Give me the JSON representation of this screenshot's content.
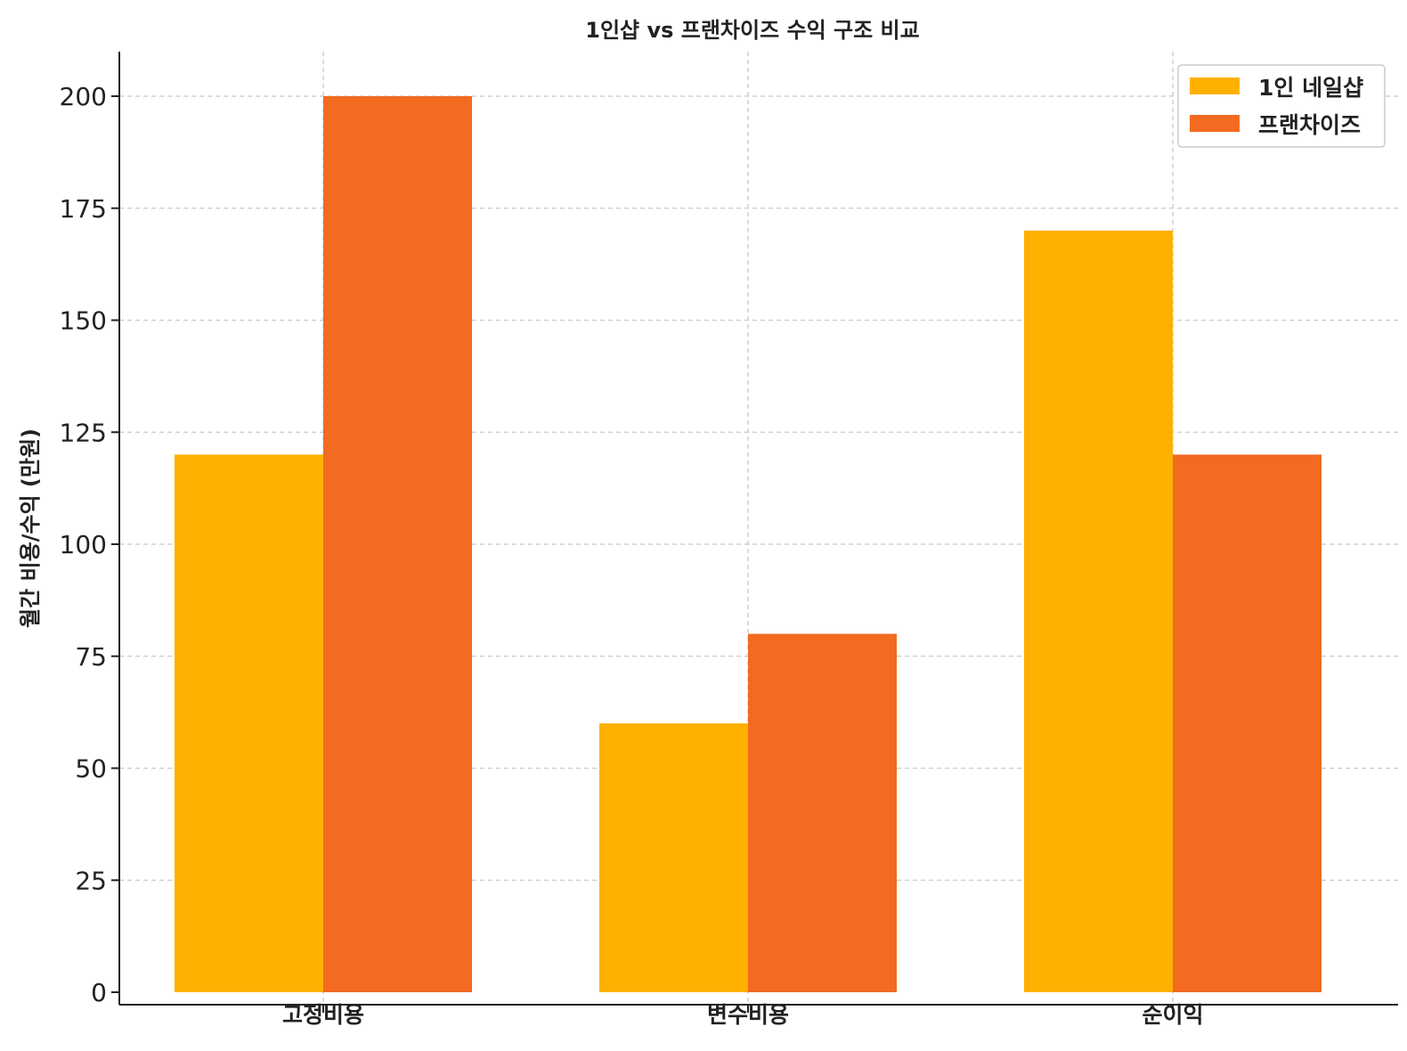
{
  "chart_data": {
    "type": "bar",
    "title": "1인샵 vs 프랜차이즈 수익 구조 비교",
    "xlabel": "",
    "ylabel": "월간 비용/수익 (만원)",
    "categories": [
      "고정비용",
      "변수비용",
      "순이익"
    ],
    "series": [
      {
        "name": "1인 네일샵",
        "values": [
          120,
          60,
          170
        ],
        "color": "#FFB000"
      },
      {
        "name": "프랜차이즈",
        "values": [
          200,
          80,
          120
        ],
        "color": "#F26B21"
      }
    ],
    "ylim": [
      0,
      210
    ],
    "yticks": [
      0,
      25,
      50,
      75,
      100,
      125,
      150,
      175,
      200
    ],
    "grid": true,
    "legend_position": "top-right"
  }
}
